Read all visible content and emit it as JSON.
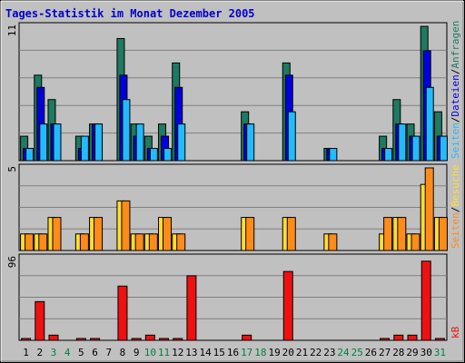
{
  "chart_data": {
    "type": "bar",
    "title": "Tages-Statistik im Monat Dezember 2005",
    "days": [
      "1",
      "2",
      "3",
      "4",
      "5",
      "6",
      "7",
      "8",
      "9",
      "10",
      "11",
      "12",
      "13",
      "14",
      "15",
      "16",
      "17",
      "18",
      "19",
      "20",
      "21",
      "22",
      "23",
      "24",
      "25",
      "26",
      "27",
      "28",
      "29",
      "30",
      "31"
    ],
    "weekend_days": [
      "3",
      "4",
      "10",
      "11",
      "17",
      "18",
      "24",
      "25",
      "31"
    ],
    "panels": [
      {
        "id": "traffic",
        "axis_max_label": "11",
        "ymax": 11,
        "series": [
          {
            "name": "Anfragen",
            "color": "#1e7a60",
            "values": [
              2,
              7,
              5,
              0,
              2,
              3,
              0,
              10,
              3,
              2,
              3,
              8,
              0,
              0,
              0,
              0,
              4,
              0,
              0,
              8,
              0,
              0,
              1,
              0,
              0,
              0,
              2,
              5,
              3,
              11,
              4
            ]
          },
          {
            "name": "Dateien",
            "color": "#0000dd",
            "values": [
              1,
              6,
              3,
              0,
              1,
              3,
              0,
              7,
              2,
              1,
              2,
              6,
              0,
              0,
              0,
              0,
              3,
              0,
              0,
              7,
              0,
              0,
              1,
              0,
              0,
              0,
              1,
              3,
              2,
              9,
              2
            ]
          },
          {
            "name": "Seiten",
            "color": "#22bbff",
            "values": [
              1,
              3,
              3,
              0,
              2,
              3,
              0,
              5,
              3,
              1,
              1,
              3,
              0,
              0,
              0,
              0,
              3,
              0,
              0,
              4,
              0,
              0,
              1,
              0,
              0,
              0,
              1,
              3,
              2,
              6,
              2
            ]
          }
        ]
      },
      {
        "id": "visits",
        "axis_max_label": "5",
        "ymax": 5,
        "series": [
          {
            "name": "Besuche",
            "color": "#ffdd33",
            "values": [
              1,
              1,
              2,
              0,
              1,
              2,
              0,
              3,
              1,
              1,
              2,
              1,
              0,
              0,
              0,
              0,
              2,
              0,
              0,
              2,
              0,
              0,
              1,
              0,
              0,
              0,
              1,
              2,
              1,
              4,
              2
            ]
          },
          {
            "name": "Seiten",
            "color": "#ff8c1a",
            "values": [
              1,
              1,
              2,
              0,
              1,
              2,
              0,
              3,
              1,
              1,
              2,
              1,
              0,
              0,
              0,
              0,
              2,
              0,
              0,
              2,
              0,
              0,
              1,
              0,
              0,
              0,
              2,
              2,
              1,
              5,
              2
            ]
          }
        ]
      },
      {
        "id": "kb",
        "axis_max_label": "96",
        "ymax": 96,
        "series": [
          {
            "name": "kB",
            "color": "#ee1111",
            "values": [
              1,
              45,
              6,
              0,
              1,
              1,
              0,
              63,
              1,
              6,
              1,
              1,
              75,
              0,
              0,
              0,
              6,
              0,
              0,
              80,
              0,
              0,
              0,
              0,
              0,
              0,
              1,
              6,
              6,
              92,
              1
            ]
          }
        ]
      }
    ],
    "right_labels": {
      "traffic": [
        "Seiten",
        "/",
        "Dateien",
        "/",
        "Anfragen"
      ],
      "visits": [
        "Seiten",
        "/",
        "Besuche"
      ],
      "kb": [
        "kB"
      ]
    },
    "colors": {
      "background": "#c0c0c0",
      "title": "#0000cc",
      "weekday": "#000000",
      "weekend": "#008040",
      "slash": "#000000"
    }
  }
}
